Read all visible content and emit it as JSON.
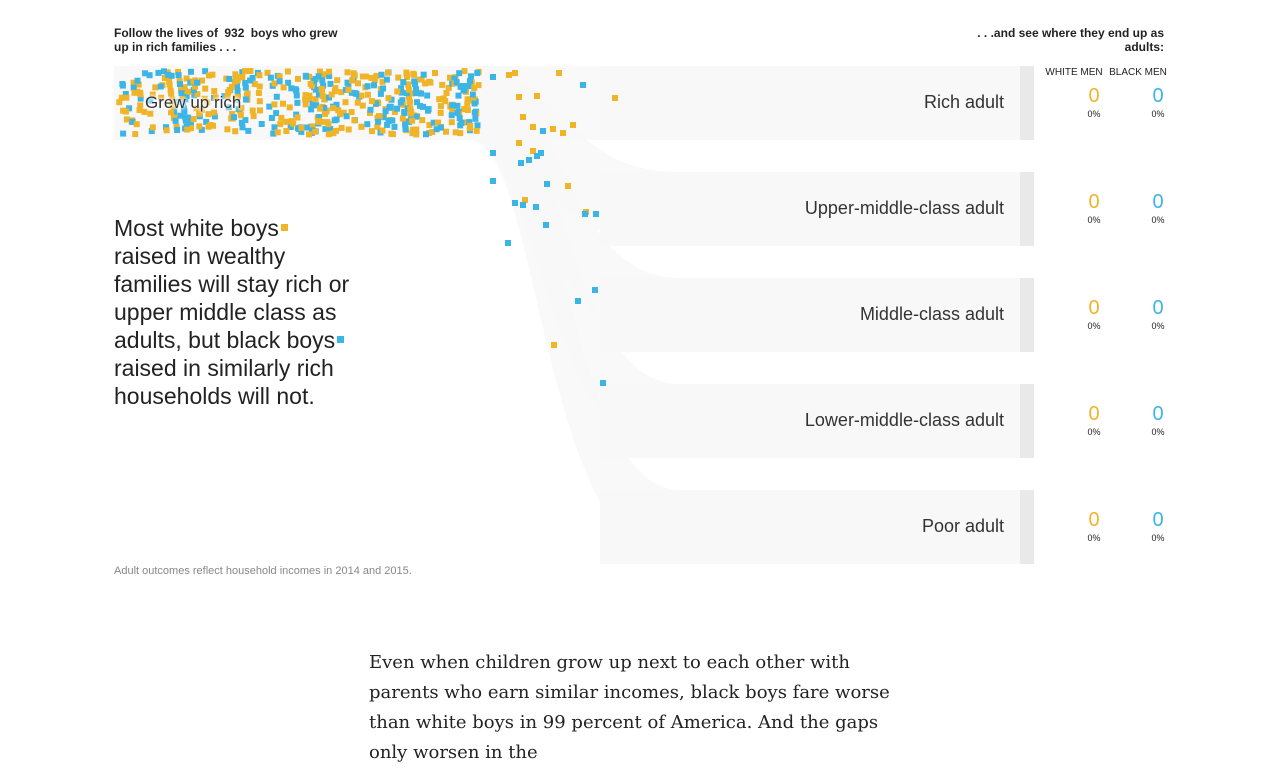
{
  "header": {
    "left_prefix": "Follow the lives of",
    "boys_count": "932",
    "left_suffix": "boys who grew up in rich families . . .",
    "right": ". . .and see where they end up as adults:",
    "col_white": "WHITE MEN",
    "col_black": "BLACK MEN"
  },
  "start_label": "Grew up rich",
  "story": {
    "part1": "Most white boys",
    "part2": "raised in wealthy families will stay rich or upper middle class as adults, but black boys",
    "part3": "raised in similarly rich households will not."
  },
  "note": "Adult outcomes reflect household incomes in 2014 and 2015.",
  "body_text": "Even when children grow up next to each other with parents who earn similar incomes, black boys fare worse than white boys in 99 percent of America. And the gaps only worsen in the",
  "colors": {
    "white_men": "#f0b429",
    "black_men": "#3ab5e6",
    "band": "#f8f8f8",
    "band_edge": "#e9e9e9"
  },
  "chart_data": {
    "type": "flow",
    "total_boys": 932,
    "origin": "Grew up rich",
    "series": [
      {
        "name": "WHITE MEN"
      },
      {
        "name": "BLACK MEN"
      }
    ],
    "outcomes": [
      {
        "label": "Rich adult",
        "white": "0",
        "white_pct": "0%",
        "black": "0",
        "black_pct": "0%"
      },
      {
        "label": "Upper-middle-class adult",
        "white": "0",
        "white_pct": "0%",
        "black": "0",
        "black_pct": "0%"
      },
      {
        "label": "Middle-class adult",
        "white": "0",
        "white_pct": "0%",
        "black": "0",
        "black_pct": "0%"
      },
      {
        "label": "Lower-middle-class adult",
        "white": "0",
        "white_pct": "0%",
        "black": "0",
        "black_pct": "0%"
      },
      {
        "label": "Poor adult",
        "white": "0",
        "white_pct": "0%",
        "black": "0",
        "black_pct": "0%"
      }
    ]
  }
}
